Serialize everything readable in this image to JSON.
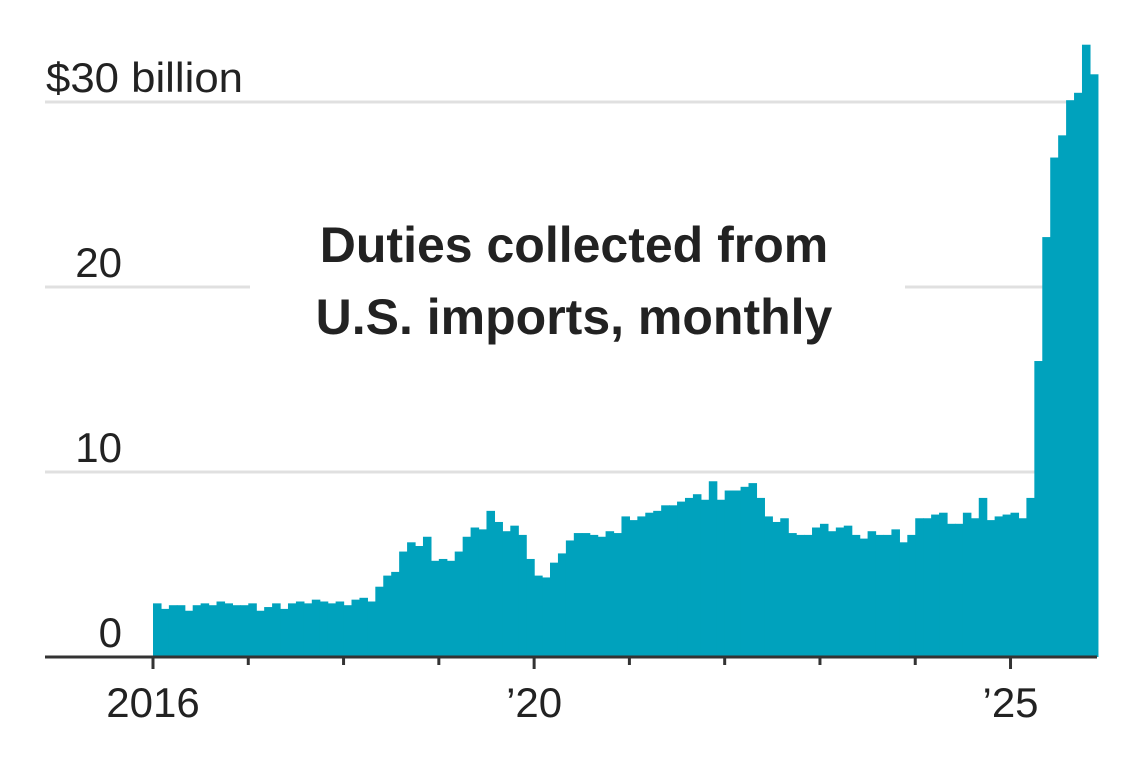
{
  "chart_data": {
    "type": "bar",
    "title": "Duties collected from",
    "subtitle": "U.S. imports, monthly",
    "color": "#00a2bd",
    "grid": true,
    "categories": [
      "2016",
      null,
      null,
      null,
      null,
      null,
      null,
      null,
      null,
      null,
      null,
      null,
      null,
      null,
      null,
      null,
      null,
      null,
      null,
      null,
      null,
      null,
      null,
      null,
      null,
      null,
      null,
      null,
      null,
      null,
      null,
      null,
      null,
      null,
      null,
      null,
      null,
      null,
      null,
      null,
      null,
      null,
      null,
      null,
      null,
      null,
      null,
      null,
      "’20",
      null,
      null,
      null,
      null,
      null,
      null,
      null,
      null,
      null,
      null,
      null,
      null,
      null,
      null,
      null,
      null,
      null,
      null,
      null,
      null,
      null,
      null,
      null,
      null,
      null,
      null,
      null,
      null,
      null,
      null,
      null,
      null,
      null,
      null,
      null,
      null,
      null,
      null,
      null,
      null,
      null,
      null,
      null,
      null,
      null,
      null,
      null,
      null,
      null,
      null,
      null,
      null,
      null,
      null,
      null,
      null,
      null,
      null,
      null,
      "’25",
      null,
      null,
      null,
      null,
      null,
      null,
      null,
      null,
      null,
      null
    ],
    "values": [
      2.9,
      2.6,
      2.8,
      2.8,
      2.5,
      2.8,
      2.9,
      2.8,
      3.0,
      2.9,
      2.8,
      2.8,
      2.9,
      2.5,
      2.7,
      2.9,
      2.6,
      2.9,
      3.0,
      2.9,
      3.1,
      3.0,
      2.9,
      3.0,
      2.8,
      3.1,
      3.2,
      3.0,
      3.8,
      4.4,
      4.6,
      5.7,
      6.2,
      6.0,
      6.5,
      5.2,
      5.3,
      5.2,
      5.7,
      6.5,
      7.0,
      6.9,
      7.9,
      7.3,
      6.8,
      7.1,
      6.6,
      5.3,
      4.4,
      4.3,
      5.1,
      5.6,
      6.3,
      6.7,
      6.7,
      6.6,
      6.5,
      6.8,
      6.7,
      7.6,
      7.4,
      7.6,
      7.8,
      7.9,
      8.2,
      8.2,
      8.4,
      8.6,
      8.8,
      8.5,
      9.5,
      8.5,
      9.0,
      9.0,
      9.2,
      9.4,
      8.6,
      7.6,
      7.3,
      7.5,
      6.7,
      6.6,
      6.6,
      7.0,
      7.2,
      6.8,
      7.0,
      7.1,
      6.6,
      6.4,
      6.8,
      6.6,
      6.6,
      6.9,
      6.2,
      6.6,
      7.5,
      7.5,
      7.7,
      7.8,
      7.2,
      7.2,
      7.8,
      7.5,
      8.6,
      7.4,
      7.6,
      7.7,
      7.8,
      7.5,
      8.6,
      16.0,
      22.7,
      27.0,
      28.2,
      30.1,
      30.5,
      33.1,
      31.5
    ],
    "ylim": [
      0,
      33.3
    ],
    "yticks": [
      0,
      10,
      20,
      {
        "value": 30,
        "label": "$30 billion"
      }
    ]
  }
}
